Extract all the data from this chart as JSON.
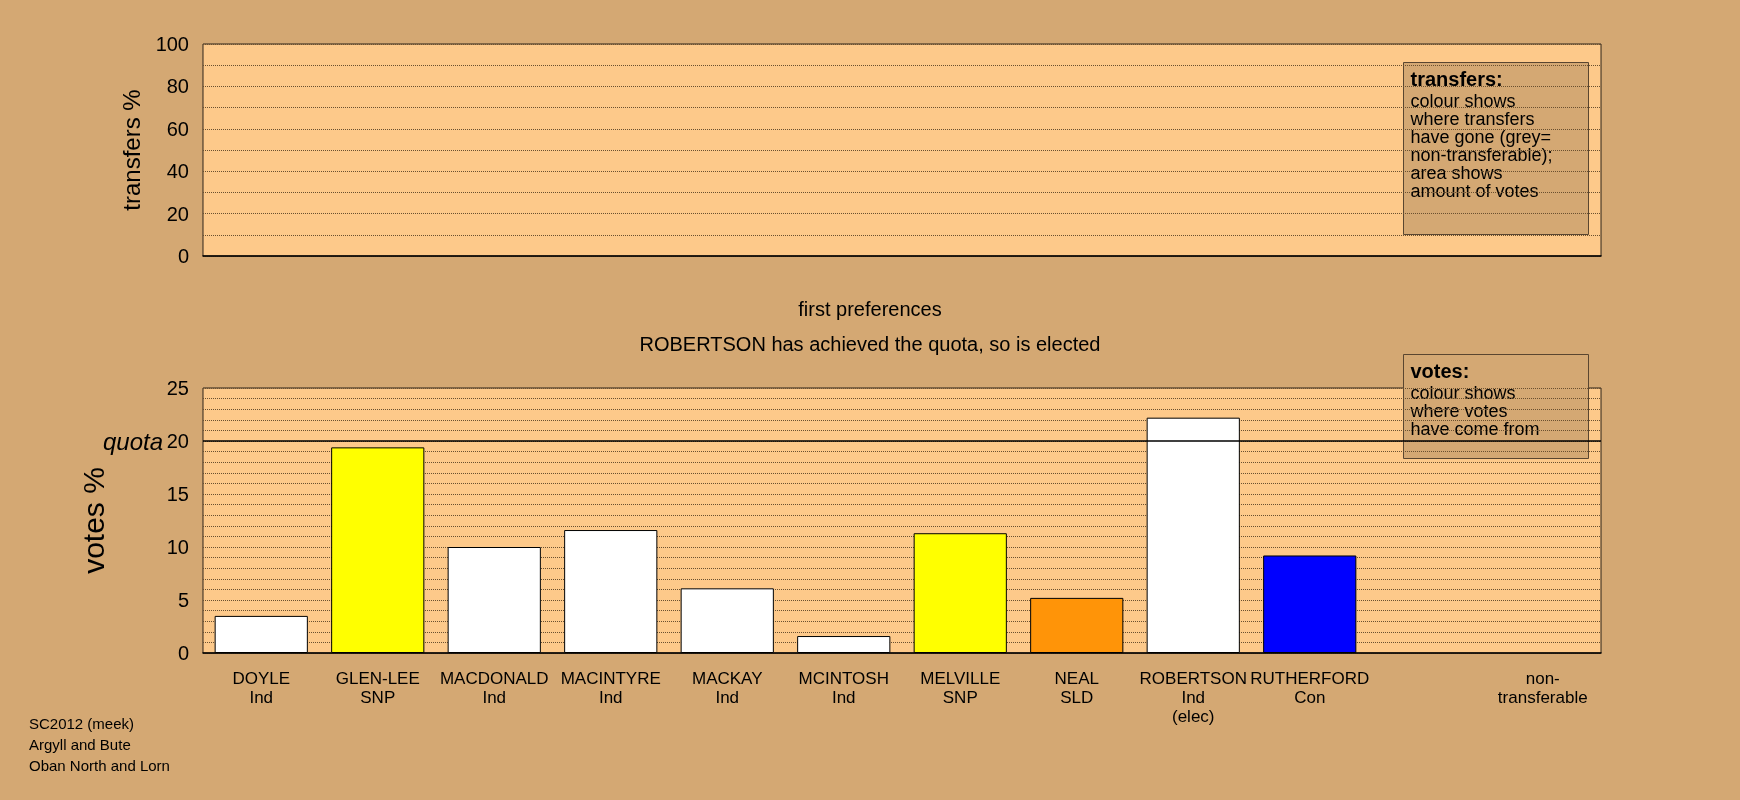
{
  "chart_data": [
    {
      "type": "bar",
      "ylabel": "transfers %",
      "categories": [
        null,
        null,
        null,
        null,
        null,
        null,
        null,
        null,
        null,
        null,
        null,
        null
      ],
      "values": [
        null,
        null,
        null,
        null,
        null,
        null,
        null,
        null,
        null,
        null,
        null,
        null
      ],
      "ylim": [
        0,
        100
      ],
      "yticks": [
        0,
        {
          "value": 10,
          "label": null
        },
        20,
        {
          "value": 30,
          "label": null
        },
        40,
        {
          "value": 50,
          "label": null
        },
        60,
        {
          "value": 70,
          "label": null
        },
        80,
        {
          "value": 90,
          "label": null
        },
        100
      ],
      "grid": "y",
      "tick_labels": "y",
      "annotations": [
        "transfers:\ncolour shows\nwhere transfers\nhave gone (grey=\nnon-transferable);\narea shows\namount of votes"
      ]
    },
    {
      "type": "bar",
      "title": "first preferences",
      "subtitle": "ROBERTSON has achieved the quota, so is elected",
      "ylabel": "votes %",
      "categories": [
        "DOYLE\nInd",
        "GLEN-LEE\nSNP",
        "MACDONALD\nInd",
        "MACINTYRE\nInd",
        "MACKAY\nInd",
        "MCINTOSH\nInd",
        "MELVILLE\nSNP",
        "NEAL\nSLD",
        "ROBERTSON\nInd\n(elec)",
        "RUTHERFORD\nCon",
        null,
        "non-\ntransferable"
      ],
      "values": [
        3.5,
        19.4,
        10.0,
        11.6,
        6.1,
        1.6,
        11.3,
        5.2,
        22.2,
        9.2,
        null,
        null
      ],
      "colors": [
        "#ffffff",
        "#ffff00",
        "#ffffff",
        "#ffffff",
        "#ffffff",
        "#ffffff",
        "#ffff00",
        "#ff9408",
        "#ffffff",
        "#0000ff",
        "#ffffff",
        "#ffffff"
      ],
      "ylim": [
        0,
        25
      ],
      "yticks": [
        0,
        {
          "value": 1,
          "label": null
        },
        {
          "value": 2,
          "label": null
        },
        {
          "value": 3,
          "label": null
        },
        {
          "value": 4,
          "label": null
        },
        5,
        {
          "value": 6,
          "label": null
        },
        {
          "value": 7,
          "label": null
        },
        {
          "value": 8,
          "label": null
        },
        {
          "value": 9,
          "label": null
        },
        10,
        {
          "value": 11,
          "label": null
        },
        {
          "value": 12,
          "label": null
        },
        {
          "value": 13,
          "label": null
        },
        {
          "value": 14,
          "label": null
        },
        15,
        {
          "value": 16,
          "label": null
        },
        {
          "value": 17,
          "label": null
        },
        {
          "value": 18,
          "label": null
        },
        {
          "value": 19,
          "label": null
        },
        20,
        {
          "value": 21,
          "label": null
        },
        {
          "value": 22,
          "label": null
        },
        {
          "value": 23,
          "label": null
        },
        {
          "value": 24,
          "label": null
        },
        25
      ],
      "grid": "y",
      "ref_lines": [
        {
          "axis": "y",
          "value": 20,
          "label": "quota"
        }
      ],
      "annotations": [
        "votes:\ncolour shows\nwhere votes\nhave come from",
        "SC2012 (meek)\nArgyll and Bute\nOban North and Lorn"
      ]
    }
  ]
}
